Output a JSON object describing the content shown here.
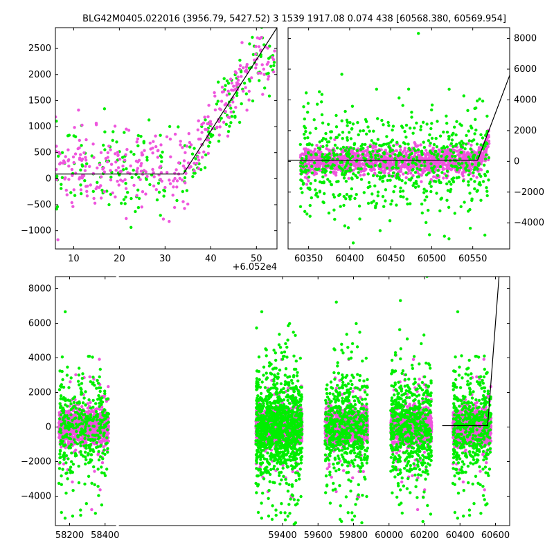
{
  "title": "BLG42M0405.022016 (3956.79, 5427.52)   3 1539 1917.08 0.074 438 [60568.380, 60569.954]",
  "colors": {
    "series_a": "#00ee00",
    "series_b": "#ee55dd",
    "model": "#000000"
  },
  "chart_data": [
    {
      "type": "scatter",
      "panel": "top-left zoom",
      "xlim": [
        6,
        54.5
      ],
      "ylim": [
        -1350,
        2900
      ],
      "x_offset_label": "+6.052e4",
      "xticks": [
        10,
        20,
        30,
        40,
        50
      ],
      "yticks": [
        -1000,
        -500,
        0,
        500,
        1000,
        1500,
        2000,
        2500
      ],
      "x_range_points": [
        6,
        54
      ],
      "model_line": {
        "x": [
          6,
          34,
          54.5
        ],
        "y": [
          90,
          90,
          2900
        ]
      },
      "series": [
        {
          "color": "series_a",
          "count": 230,
          "baseline": 150,
          "spread": 450,
          "rise_start": 34,
          "rise_end": 50,
          "rise_to": 2300
        },
        {
          "color": "series_b",
          "count": 330,
          "baseline": 150,
          "spread": 380,
          "rise_start": 34,
          "rise_end": 50,
          "rise_to": 2300
        }
      ]
    },
    {
      "type": "scatter",
      "panel": "top-right",
      "xlim": [
        60325,
        60595
      ],
      "ylim": [
        -5700,
        8700
      ],
      "xticks": [
        60350,
        60400,
        60450,
        60500,
        60550
      ],
      "yticks": [
        -4000,
        -2000,
        0,
        2000,
        4000,
        6000,
        8000
      ],
      "x_range_points": [
        60340,
        60570
      ],
      "model_line": {
        "x": [
          60325,
          60556,
          60595
        ],
        "y": [
          80,
          80,
          5600
        ]
      },
      "series": [
        {
          "color": "series_a",
          "count": 700,
          "baseline": 0,
          "spread": 1500
        },
        {
          "color": "series_b",
          "count": 1400,
          "baseline": 0,
          "spread": 450
        }
      ]
    },
    {
      "type": "scatter",
      "panel": "bottom full",
      "xlim": [
        58120,
        60680
      ],
      "ylim": [
        -5700,
        8700
      ],
      "xticks": [
        58200,
        58400,
        59400,
        59600,
        59800,
        60000,
        60200,
        60400,
        60600
      ],
      "yticks": [
        -4000,
        -2000,
        0,
        2000,
        4000,
        6000,
        8000
      ],
      "axis_break_x": 58470,
      "seasons": [
        {
          "x": [
            58140,
            58420
          ],
          "green": 380,
          "pink": 1000
        },
        {
          "x": [
            59250,
            59510
          ],
          "green": 1100,
          "pink": 1400
        },
        {
          "x": [
            59640,
            59880
          ],
          "green": 600,
          "pink": 1100
        },
        {
          "x": [
            60010,
            60240
          ],
          "green": 600,
          "pink": 1100
        },
        {
          "x": [
            60360,
            60575
          ],
          "green": 450,
          "pink": 1000
        }
      ],
      "model_line": {
        "x": [
          60300,
          60556,
          60620
        ],
        "y": [
          80,
          80,
          8700
        ]
      }
    }
  ]
}
